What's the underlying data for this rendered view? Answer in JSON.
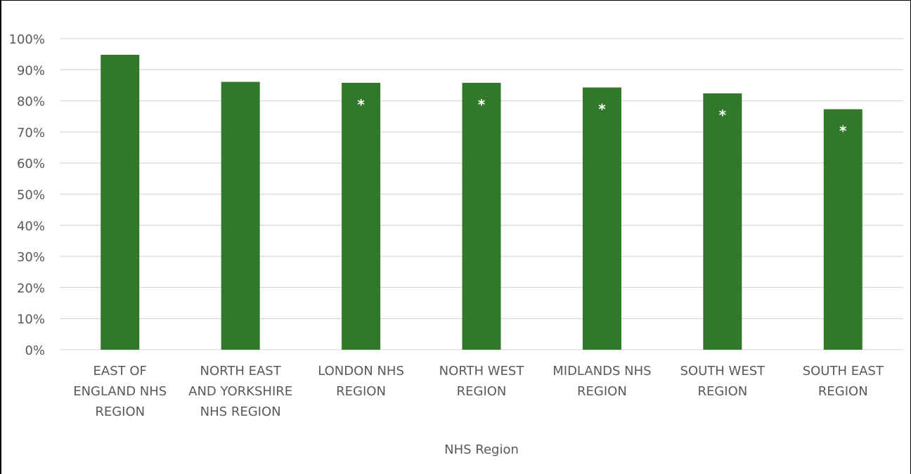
{
  "chart_data": {
    "type": "bar",
    "xlabel": "NHS Region",
    "ylabel": "",
    "ylim": [
      0,
      100
    ],
    "yticks": [
      "0%",
      "10%",
      "20%",
      "30%",
      "40%",
      "50%",
      "60%",
      "70%",
      "80%",
      "90%",
      "100%"
    ],
    "categories": [
      [
        "EAST OF",
        "ENGLAND NHS",
        "REGION"
      ],
      [
        "NORTH EAST",
        "AND YORKSHIRE",
        "NHS REGION"
      ],
      [
        "LONDON NHS",
        "REGION"
      ],
      [
        "NORTH WEST",
        "REGION"
      ],
      [
        "MIDLANDS NHS",
        "REGION"
      ],
      [
        "SOUTH WEST",
        "REGION"
      ],
      [
        "SOUTH EAST",
        "REGION"
      ]
    ],
    "values": [
      94.8,
      86.1,
      85.8,
      85.8,
      84.3,
      82.4,
      77.3
    ],
    "annotations": [
      "",
      "",
      "*",
      "*",
      "*",
      "*",
      "*"
    ],
    "bar_color": "#31782b",
    "grid": true
  }
}
